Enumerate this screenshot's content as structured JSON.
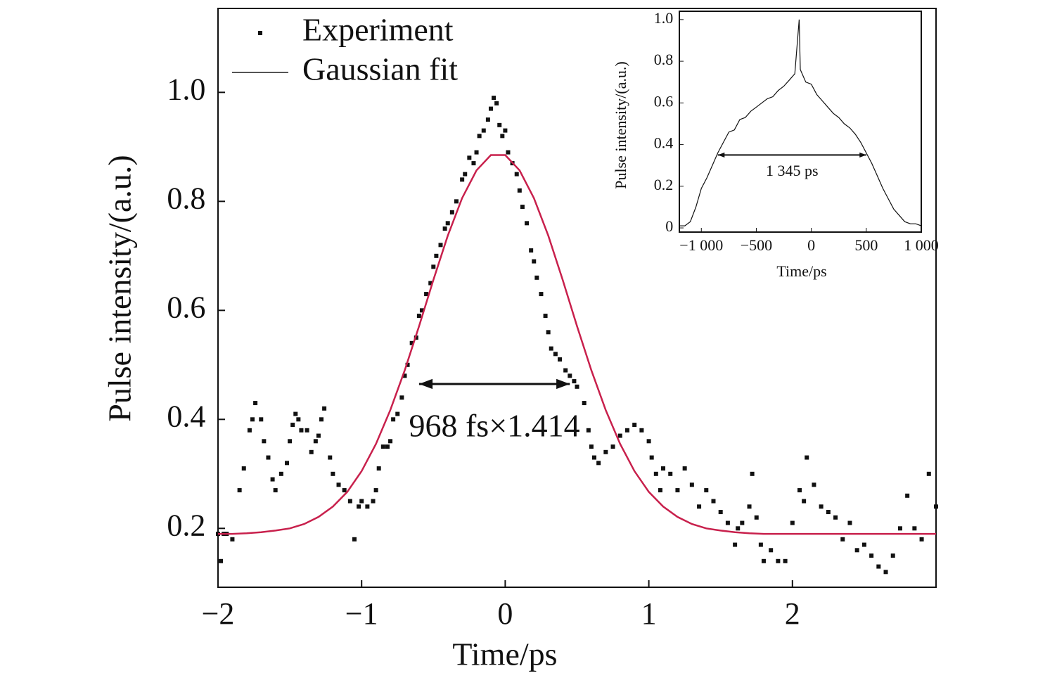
{
  "chart_data": [
    {
      "type": "scatter",
      "x_label": "Time/ps",
      "y_label": "Pulse intensity/(a.u.)",
      "xlim": [
        -2,
        3
      ],
      "ylim": [
        0.092,
        1.154
      ],
      "xticks": [
        {
          "value": -2,
          "label": "−2"
        },
        {
          "value": -1,
          "label": "−1"
        },
        0,
        1,
        2
      ],
      "yticks": [
        0.2,
        0.4,
        0.6,
        0.8,
        {
          "value": 1.0,
          "label": "1.0"
        }
      ],
      "legend": "upper left",
      "series": [
        {
          "name": "Experiment",
          "type": "scatter",
          "color": "#111111",
          "x": [
            -2.0,
            -1.98,
            -1.96,
            -1.94,
            -1.9,
            -1.85,
            -1.82,
            -1.78,
            -1.76,
            -1.74,
            -1.7,
            -1.68,
            -1.65,
            -1.62,
            -1.6,
            -1.56,
            -1.52,
            -1.5,
            -1.48,
            -1.46,
            -1.44,
            -1.42,
            -1.38,
            -1.35,
            -1.32,
            -1.3,
            -1.28,
            -1.26,
            -1.22,
            -1.2,
            -1.16,
            -1.12,
            -1.08,
            -1.05,
            -1.02,
            -1.0,
            -0.96,
            -0.92,
            -0.9,
            -0.88,
            -0.85,
            -0.82,
            -0.8,
            -0.78,
            -0.75,
            -0.72,
            -0.7,
            -0.68,
            -0.65,
            -0.62,
            -0.6,
            -0.58,
            -0.55,
            -0.52,
            -0.5,
            -0.48,
            -0.45,
            -0.42,
            -0.4,
            -0.37,
            -0.34,
            -0.3,
            -0.28,
            -0.25,
            -0.22,
            -0.2,
            -0.18,
            -0.15,
            -0.12,
            -0.1,
            -0.08,
            -0.06,
            -0.04,
            -0.02,
            0.0,
            0.02,
            0.05,
            0.08,
            0.1,
            0.12,
            0.15,
            0.18,
            0.2,
            0.22,
            0.25,
            0.28,
            0.3,
            0.32,
            0.35,
            0.38,
            0.42,
            0.45,
            0.48,
            0.5,
            0.55,
            0.58,
            0.6,
            0.62,
            0.65,
            0.7,
            0.75,
            0.8,
            0.85,
            0.9,
            0.95,
            1.0,
            1.02,
            1.05,
            1.08,
            1.1,
            1.15,
            1.2,
            1.25,
            1.3,
            1.35,
            1.4,
            1.45,
            1.5,
            1.55,
            1.6,
            1.62,
            1.65,
            1.7,
            1.72,
            1.75,
            1.78,
            1.8,
            1.85,
            1.9,
            1.95,
            2.0,
            2.05,
            2.08,
            2.1,
            2.15,
            2.2,
            2.25,
            2.3,
            2.35,
            2.4,
            2.45,
            2.5,
            2.55,
            2.6,
            2.65,
            2.7,
            2.75,
            2.8,
            2.85,
            2.9,
            2.95,
            3.0
          ],
          "values": [
            0.19,
            0.14,
            0.19,
            0.19,
            0.18,
            0.27,
            0.31,
            0.38,
            0.4,
            0.43,
            0.4,
            0.36,
            0.33,
            0.29,
            0.27,
            0.3,
            0.32,
            0.36,
            0.39,
            0.41,
            0.4,
            0.38,
            0.38,
            0.34,
            0.36,
            0.37,
            0.4,
            0.42,
            0.33,
            0.3,
            0.28,
            0.27,
            0.25,
            0.18,
            0.24,
            0.25,
            0.24,
            0.25,
            0.27,
            0.31,
            0.35,
            0.35,
            0.36,
            0.4,
            0.41,
            0.44,
            0.48,
            0.5,
            0.54,
            0.55,
            0.59,
            0.6,
            0.63,
            0.65,
            0.68,
            0.7,
            0.72,
            0.75,
            0.76,
            0.78,
            0.8,
            0.84,
            0.85,
            0.88,
            0.87,
            0.89,
            0.92,
            0.93,
            0.95,
            0.97,
            0.99,
            0.98,
            0.94,
            0.92,
            0.93,
            0.89,
            0.87,
            0.85,
            0.82,
            0.79,
            0.76,
            0.71,
            0.69,
            0.66,
            0.63,
            0.59,
            0.56,
            0.53,
            0.52,
            0.51,
            0.49,
            0.48,
            0.47,
            0.46,
            0.43,
            0.38,
            0.35,
            0.33,
            0.32,
            0.34,
            0.35,
            0.37,
            0.38,
            0.39,
            0.38,
            0.36,
            0.33,
            0.3,
            0.27,
            0.31,
            0.3,
            0.27,
            0.31,
            0.28,
            0.24,
            0.27,
            0.25,
            0.23,
            0.21,
            0.17,
            0.2,
            0.21,
            0.24,
            0.3,
            0.22,
            0.17,
            0.14,
            0.16,
            0.14,
            0.14,
            0.21,
            0.27,
            0.25,
            0.33,
            0.28,
            0.24,
            0.23,
            0.22,
            0.18,
            0.21,
            0.16,
            0.17,
            0.15,
            0.13,
            0.12,
            0.15,
            0.2,
            0.26,
            0.2,
            0.18,
            0.3,
            0.24
          ]
        },
        {
          "name": "Gaussian fit",
          "type": "line",
          "color": "#c8204c",
          "x": [
            -2.0,
            -1.9,
            -1.8,
            -1.7,
            -1.6,
            -1.5,
            -1.4,
            -1.3,
            -1.2,
            -1.1,
            -1.0,
            -0.9,
            -0.8,
            -0.7,
            -0.6,
            -0.5,
            -0.4,
            -0.3,
            -0.2,
            -0.1,
            0.0,
            0.1,
            0.2,
            0.3,
            0.4,
            0.5,
            0.6,
            0.7,
            0.8,
            0.9,
            1.0,
            1.1,
            1.2,
            1.3,
            1.4,
            1.5,
            1.6,
            1.7,
            1.8,
            2.0,
            2.5,
            3.0
          ],
          "values": [
            0.19,
            0.19,
            0.191,
            0.193,
            0.196,
            0.2,
            0.208,
            0.221,
            0.24,
            0.267,
            0.305,
            0.355,
            0.417,
            0.49,
            0.571,
            0.656,
            0.737,
            0.806,
            0.857,
            0.885,
            0.885,
            0.857,
            0.806,
            0.737,
            0.656,
            0.571,
            0.49,
            0.417,
            0.355,
            0.305,
            0.267,
            0.24,
            0.221,
            0.208,
            0.2,
            0.196,
            0.193,
            0.191,
            0.19,
            0.19,
            0.19,
            0.19
          ]
        }
      ],
      "annotation": {
        "text": "968 fs×1.414",
        "x_range": [
          -0.6,
          0.45
        ],
        "y": 0.465
      }
    },
    {
      "type": "line",
      "x_label": "Time/ps",
      "y_label": "Pulse intensity/(a.u.)",
      "xlim": [
        -1200,
        1000
      ],
      "ylim": [
        -0.02,
        1.04
      ],
      "xticks": [
        {
          "value": -1000,
          "label": "−1 000"
        },
        {
          "value": -500,
          "label": "−500"
        },
        0,
        500,
        {
          "value": 1000,
          "label": "1 000"
        }
      ],
      "yticks": [
        0,
        0.2,
        0.4,
        0.6,
        0.8,
        {
          "value": 1.0,
          "label": "1.0"
        }
      ],
      "series": [
        {
          "color": "#111111",
          "x": [
            -1200,
            -1150,
            -1100,
            -1050,
            -1000,
            -950,
            -900,
            -850,
            -800,
            -750,
            -700,
            -650,
            -600,
            -550,
            -500,
            -450,
            -400,
            -350,
            -300,
            -250,
            -200,
            -150,
            -110,
            -100,
            -50,
            0,
            50,
            100,
            150,
            200,
            250,
            300,
            350,
            400,
            450,
            500,
            550,
            600,
            650,
            700,
            750,
            800,
            850,
            900,
            950,
            1000
          ],
          "values": [
            0.01,
            0.01,
            0.03,
            0.1,
            0.19,
            0.24,
            0.3,
            0.36,
            0.41,
            0.46,
            0.47,
            0.52,
            0.53,
            0.56,
            0.58,
            0.6,
            0.62,
            0.63,
            0.66,
            0.68,
            0.71,
            0.74,
            1.0,
            0.76,
            0.7,
            0.69,
            0.64,
            0.61,
            0.58,
            0.55,
            0.53,
            0.5,
            0.48,
            0.45,
            0.41,
            0.36,
            0.31,
            0.25,
            0.19,
            0.14,
            0.09,
            0.06,
            0.03,
            0.02,
            0.02,
            0.01
          ]
        }
      ],
      "annotation": {
        "text": "1 345 ps",
        "x_range": [
          -850,
          500
        ],
        "y": 0.35
      }
    }
  ]
}
